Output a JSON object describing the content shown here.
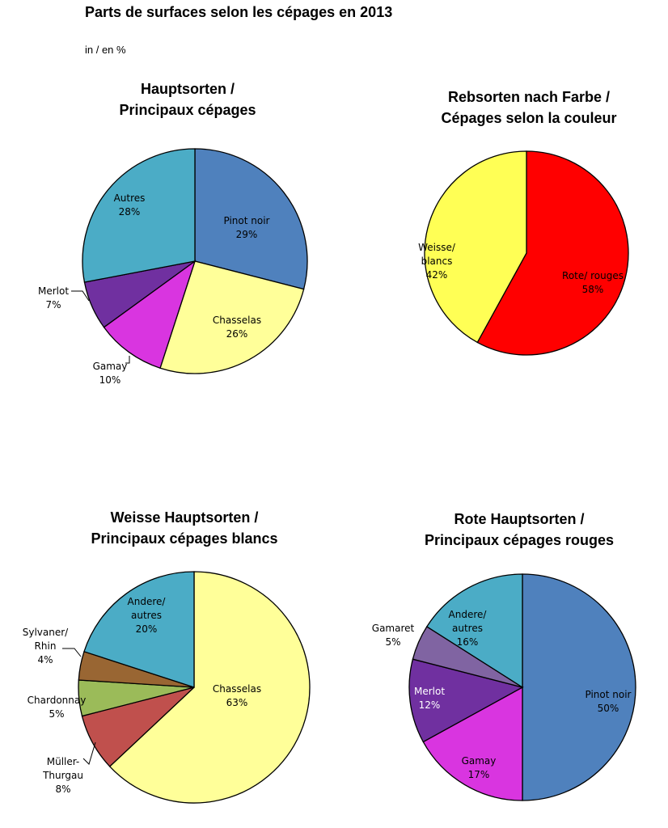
{
  "title": "Parts de surfaces selon les cépages en 2013",
  "unit": "in / en %",
  "chart_data": [
    {
      "type": "pie",
      "title": [
        "Hauptsorten /",
        "Principaux cépages"
      ],
      "slices": [
        {
          "label": [
            "Pinot noir"
          ],
          "value": 29,
          "pct": "29%",
          "color": "#4f81bd"
        },
        {
          "label": [
            "Chasselas"
          ],
          "value": 26,
          "pct": "26%",
          "color": "#ffff99"
        },
        {
          "label": [
            "Gamay"
          ],
          "value": 10,
          "pct": "10%",
          "color": "#d935e0"
        },
        {
          "label": [
            "Merlot"
          ],
          "value": 7,
          "pct": "7%",
          "color": "#7030a0"
        },
        {
          "label": [
            "Autres"
          ],
          "value": 28,
          "pct": "28%",
          "color": "#4bacc6"
        }
      ]
    },
    {
      "type": "pie",
      "title": [
        "Rebsorten nach Farbe /",
        "Cépages selon la couleur"
      ],
      "slices": [
        {
          "label": [
            "Rote/ rouges"
          ],
          "value": 58,
          "pct": "58%",
          "color": "#ff0000"
        },
        {
          "label": [
            "Weisse/",
            "blancs"
          ],
          "value": 42,
          "pct": "42%",
          "color": "#ffff55"
        }
      ]
    },
    {
      "type": "pie",
      "title": [
        "Weisse Hauptsorten /",
        "Principaux cépages blancs"
      ],
      "slices": [
        {
          "label": [
            "Chasselas"
          ],
          "value": 63,
          "pct": "63%",
          "color": "#ffff99"
        },
        {
          "label": [
            "Müller-",
            "Thurgau"
          ],
          "value": 8,
          "pct": "8%",
          "color": "#c0504d"
        },
        {
          "label": [
            "Chardonnay"
          ],
          "value": 5,
          "pct": "5%",
          "color": "#9bbb59"
        },
        {
          "label": [
            "Sylvaner/",
            "Rhin"
          ],
          "value": 4,
          "pct": "4%",
          "color": "#996633"
        },
        {
          "label": [
            "Andere/",
            "autres"
          ],
          "value": 20,
          "pct": "20%",
          "color": "#4bacc6"
        }
      ]
    },
    {
      "type": "pie",
      "title": [
        "Rote Hauptsorten /",
        "Principaux cépages rouges"
      ],
      "slices": [
        {
          "label": [
            "Pinot noir"
          ],
          "value": 50,
          "pct": "50%",
          "color": "#4f81bd"
        },
        {
          "label": [
            "Gamay"
          ],
          "value": 17,
          "pct": "17%",
          "color": "#d935e0"
        },
        {
          "label": [
            "Merlot"
          ],
          "value": 12,
          "pct": "12%",
          "color": "#7030a0"
        },
        {
          "label": [
            "Gamaret"
          ],
          "value": 5,
          "pct": "5%",
          "color": "#8064a2"
        },
        {
          "label": [
            "Andere/",
            "autres"
          ],
          "value": 16,
          "pct": "16%",
          "color": "#4bacc6"
        }
      ]
    }
  ]
}
